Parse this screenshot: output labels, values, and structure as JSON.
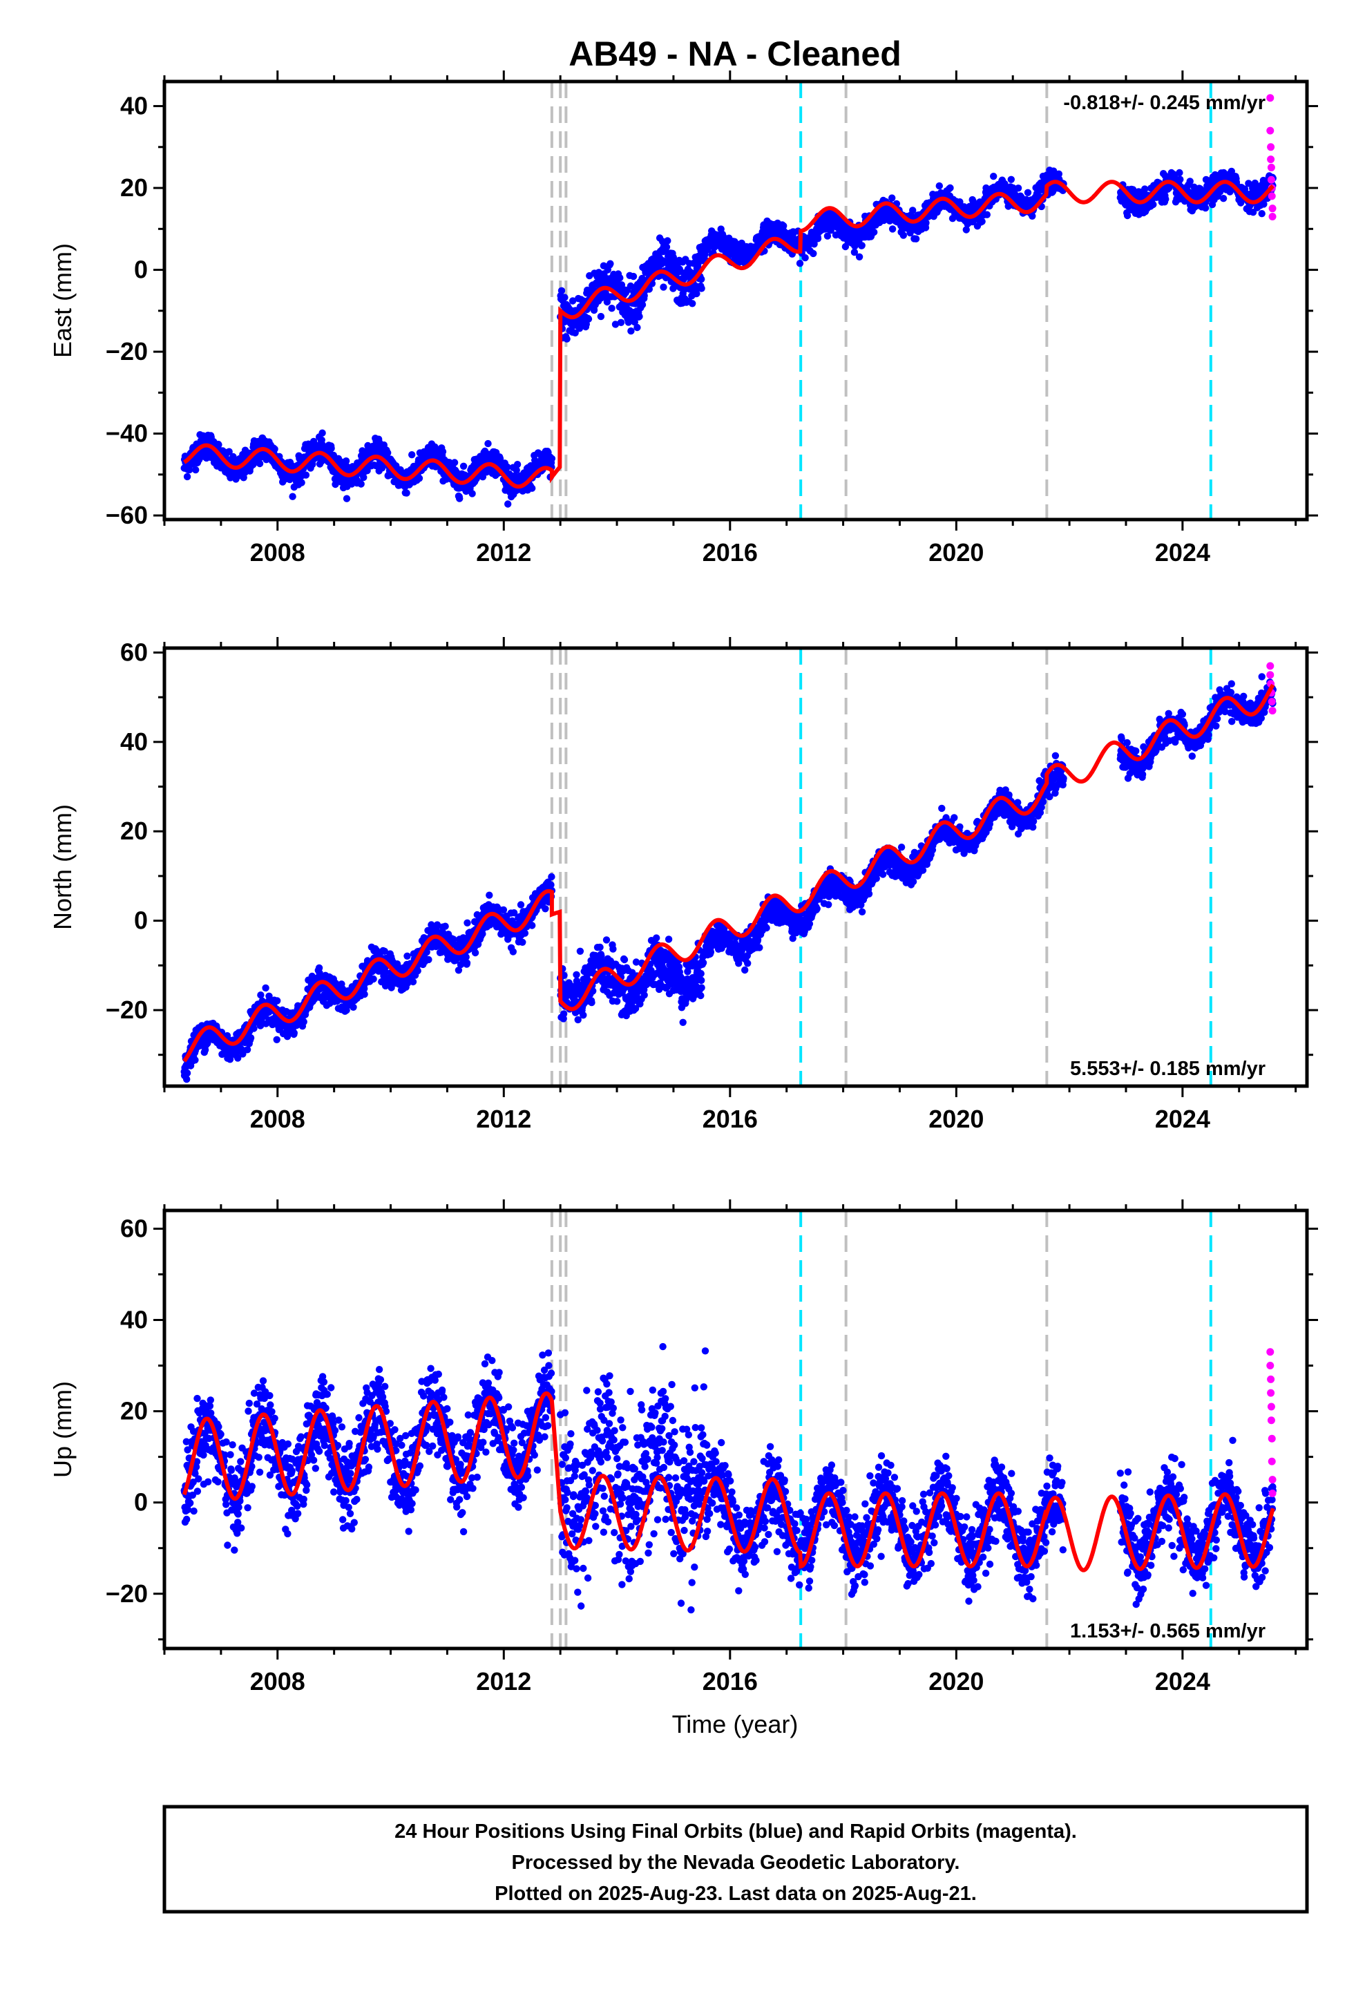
{
  "page": {
    "title": "AB49  - NA - Cleaned",
    "x_axis_label": "Time (year)",
    "footer": [
      "24 Hour Positions Using Final Orbits (blue) and Rapid Orbits (magenta).",
      "Processed by the Nevada Geodetic Laboratory.",
      "Plotted on 2025-Aug-23. Last data on 2025-Aug-21."
    ]
  },
  "colors": {
    "final_orbits": "#0000ff",
    "rapid_orbits": "#ff00ff",
    "model": "#ff0000",
    "equipment_change": "#c0c0c0",
    "earthquake": "#00e5ff",
    "axis": "#000000"
  },
  "events": {
    "equipment_changes": [
      2012.85,
      2013.0,
      2013.1,
      2018.05,
      2021.6
    ],
    "earthquakes": [
      2017.25,
      2024.5
    ]
  },
  "chart_data": [
    {
      "type": "scatter",
      "component": "East",
      "ylabel": "East (mm)",
      "xlim": [
        2006.0,
        2026.2
      ],
      "ylim": [
        -61,
        46
      ],
      "xticks": [
        2008,
        2012,
        2016,
        2020,
        2024
      ],
      "yticks": [
        -60,
        -40,
        -20,
        0,
        20,
        40
      ],
      "rate_text": "-0.818+/- 0.245 mm/yr",
      "series": [
        {
          "kind": "scatter",
          "color": "#0000ff",
          "segments": [
            {
              "x0": 2006.35,
              "x1": 2012.85,
              "y_start": -45.5,
              "y_end": -50.0,
              "amplitude": 3.0,
              "scatter": 1.6
            },
            {
              "x0": 2013.0,
              "x1": 2015.5,
              "y_start": -10.0,
              "y_end": 1.0,
              "amplitude": 3.5,
              "scatter": 2.8
            },
            {
              "x0": 2015.5,
              "x1": 2021.6,
              "y_start": 4.0,
              "y_end": 19.0,
              "amplitude": 2.5,
              "scatter": 1.4
            },
            {
              "x0": 2021.6,
              "x1": 2021.9,
              "y_start": 20.0,
              "y_end": 20.0,
              "amplitude": 1.5,
              "scatter": 1.2
            },
            {
              "x0": 2022.9,
              "x1": 2025.6,
              "y_start": 18.0,
              "y_end": 20.0,
              "amplitude": 2.0,
              "scatter": 1.5
            }
          ]
        },
        {
          "kind": "scatter",
          "color": "#ff00ff",
          "points": [
            [
              2025.55,
              42
            ],
            [
              2025.55,
              34
            ],
            [
              2025.56,
              30
            ],
            [
              2025.56,
              27
            ],
            [
              2025.57,
              25
            ],
            [
              2025.57,
              22
            ],
            [
              2025.58,
              20
            ],
            [
              2025.58,
              18
            ],
            [
              2025.59,
              15
            ],
            [
              2025.59,
              13
            ]
          ]
        },
        {
          "kind": "line",
          "color": "#ff0000",
          "segments": [
            {
              "x0": 2006.35,
              "x1": 2012.85,
              "y_start": -45.0,
              "y_end": -51.0,
              "amplitude": 2.5
            },
            {
              "x0": 2012.85,
              "x1": 2013.0,
              "y_start": -51.0,
              "y_end": -48.0,
              "amplitude": 0.5
            },
            {
              "x0": 2013.0,
              "x1": 2017.25,
              "y_start": -10.0,
              "y_end": 7.0,
              "amplitude": 2.5
            },
            {
              "x0": 2017.25,
              "x1": 2021.6,
              "y_start": 12.0,
              "y_end": 17.0,
              "amplitude": 2.5
            },
            {
              "x0": 2021.6,
              "x1": 2025.6,
              "y_start": 19.0,
              "y_end": 19.0,
              "amplitude": 2.5
            }
          ]
        }
      ]
    },
    {
      "type": "scatter",
      "component": "North",
      "ylabel": "North (mm)",
      "xlim": [
        2006.0,
        2026.2
      ],
      "ylim": [
        -37,
        61
      ],
      "xticks": [
        2008,
        2012,
        2016,
        2020,
        2024
      ],
      "yticks": [
        -20,
        0,
        20,
        40,
        60
      ],
      "rate_text": "5.553+/- 0.185 mm/yr",
      "series": [
        {
          "kind": "scatter",
          "color": "#0000ff",
          "segments": [
            {
              "x0": 2006.35,
              "x1": 2012.85,
              "y_start": -30.0,
              "y_end": 4.0,
              "amplitude": 3.0,
              "scatter": 1.6
            },
            {
              "x0": 2013.0,
              "x1": 2015.5,
              "y_start": -15.0,
              "y_end": -11.0,
              "amplitude": 3.0,
              "scatter": 2.8
            },
            {
              "x0": 2015.5,
              "x1": 2021.9,
              "y_start": -8.0,
              "y_end": 30.0,
              "amplitude": 3.0,
              "scatter": 1.5
            },
            {
              "x0": 2022.9,
              "x1": 2025.6,
              "y_start": 36.0,
              "y_end": 51.0,
              "amplitude": 3.0,
              "scatter": 1.5
            }
          ]
        },
        {
          "kind": "scatter",
          "color": "#ff00ff",
          "points": [
            [
              2025.55,
              57
            ],
            [
              2025.55,
              55
            ],
            [
              2025.56,
              53
            ],
            [
              2025.57,
              51
            ],
            [
              2025.58,
              49
            ],
            [
              2025.59,
              47
            ]
          ]
        },
        {
          "kind": "line",
          "color": "#ff0000",
          "segments": [
            {
              "x0": 2006.35,
              "x1": 2012.85,
              "y_start": -29.0,
              "y_end": 4.0,
              "amplitude": 3.0
            },
            {
              "x0": 2012.85,
              "x1": 2013.0,
              "y_start": 1.0,
              "y_end": 2.0,
              "amplitude": 0.5
            },
            {
              "x0": 2013.0,
              "x1": 2021.6,
              "y_start": -18.0,
              "y_end": 29.0,
              "amplitude": 3.0
            },
            {
              "x0": 2021.6,
              "x1": 2025.6,
              "y_start": 31.0,
              "y_end": 51.0,
              "amplitude": 3.0
            }
          ]
        }
      ]
    },
    {
      "type": "scatter",
      "component": "Up",
      "ylabel": "Up (mm)",
      "xlim": [
        2006.0,
        2026.2
      ],
      "ylim": [
        -32,
        64
      ],
      "xticks": [
        2008,
        2012,
        2016,
        2020,
        2024
      ],
      "yticks": [
        -20,
        0,
        20,
        40,
        60
      ],
      "rate_text": "1.153+/- 0.565 mm/yr",
      "series": [
        {
          "kind": "scatter",
          "color": "#0000ff",
          "segments": [
            {
              "x0": 2006.35,
              "x1": 2012.85,
              "y_start": 8.0,
              "y_end": 16.0,
              "amplitude": 8.5,
              "scatter": 4.5
            },
            {
              "x0": 2013.0,
              "x1": 2015.6,
              "y_start": 5.0,
              "y_end": 5.0,
              "amplitude": 8.0,
              "scatter": 9.0
            },
            {
              "x0": 2015.6,
              "x1": 2021.9,
              "y_start": -3.0,
              "y_end": -6.0,
              "amplitude": 7.0,
              "scatter": 4.0
            },
            {
              "x0": 2022.9,
              "x1": 2025.6,
              "y_start": -6.0,
              "y_end": -5.0,
              "amplitude": 7.0,
              "scatter": 4.0
            }
          ]
        },
        {
          "kind": "scatter",
          "color": "#ff00ff",
          "points": [
            [
              2025.55,
              33
            ],
            [
              2025.55,
              30
            ],
            [
              2025.56,
              27
            ],
            [
              2025.56,
              24
            ],
            [
              2025.57,
              21
            ],
            [
              2025.57,
              18
            ],
            [
              2025.58,
              14
            ],
            [
              2025.58,
              9
            ],
            [
              2025.59,
              5
            ],
            [
              2025.59,
              2
            ]
          ]
        },
        {
          "kind": "line",
          "color": "#ff0000",
          "segments": [
            {
              "x0": 2006.35,
              "x1": 2012.85,
              "y_start": 9.0,
              "y_end": 15.0,
              "amplitude": 9.0
            },
            {
              "x0": 2013.0,
              "x1": 2017.25,
              "y_start": -2.0,
              "y_end": -3.0,
              "amplitude": 8.0
            },
            {
              "x0": 2017.25,
              "x1": 2021.6,
              "y_start": -6.0,
              "y_end": -6.0,
              "amplitude": 8.0
            },
            {
              "x0": 2021.6,
              "x1": 2025.6,
              "y_start": -7.0,
              "y_end": -6.0,
              "amplitude": 8.0
            }
          ]
        }
      ]
    }
  ]
}
